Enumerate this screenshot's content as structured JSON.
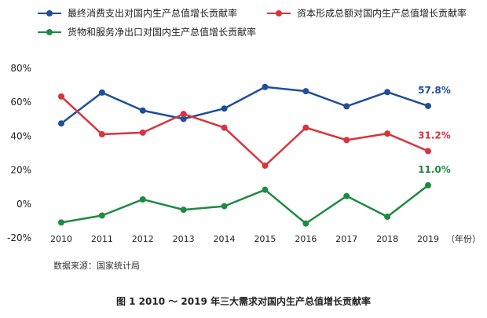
{
  "chart_data": {
    "type": "line",
    "x": [
      "2010",
      "2011",
      "2012",
      "2013",
      "2014",
      "2015",
      "2016",
      "2017",
      "2018",
      "2019"
    ],
    "x_unit": "（年份）",
    "ylim": [
      -20,
      80
    ],
    "yticks": [
      "80%",
      "60%",
      "40%",
      "20%",
      "0%",
      "-20%"
    ],
    "ytick_values": [
      80,
      60,
      40,
      20,
      0,
      -20
    ],
    "grid": false,
    "legend_position": "top",
    "series": [
      {
        "name": "最终消费支出对国内生产总值增长贡献率",
        "color": "#1f4e9c",
        "values": [
          47.5,
          65.7,
          55.1,
          50.2,
          56.3,
          69.0,
          66.5,
          57.6,
          66.0,
          57.8
        ],
        "end_label": "57.8%"
      },
      {
        "name": "资本形成总额对国内生产总值增长贡献率",
        "color": "#d9343d",
        "values": [
          63.4,
          41.1,
          42.1,
          53.1,
          45.0,
          22.6,
          45.0,
          37.7,
          41.5,
          31.2
        ],
        "end_label": "31.2%"
      },
      {
        "name": "货物和服务净出口对国内生产总值增长贡献率",
        "color": "#1e8a43",
        "values": [
          -10.9,
          -6.8,
          2.7,
          -3.4,
          -1.3,
          8.4,
          -11.5,
          4.7,
          -7.5,
          11.0
        ],
        "end_label": "11.0%"
      }
    ],
    "source": "数据来源：国家统计局",
    "caption": "图 1  2010 ～ 2019 年三大需求对国内生产总值增长贡献率"
  }
}
